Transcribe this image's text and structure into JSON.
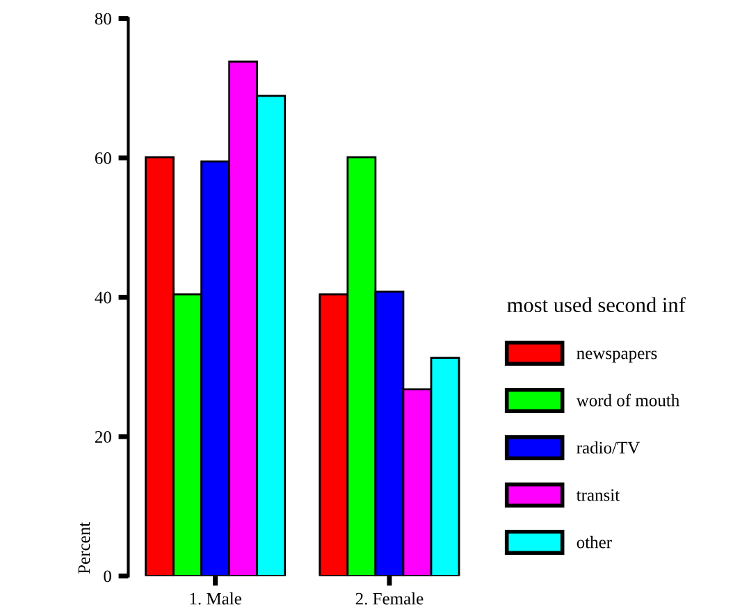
{
  "chart_data": {
    "type": "bar",
    "ylabel": "Percent",
    "legend_title": "most used second inf",
    "categories": [
      "1. Male",
      "2. Female"
    ],
    "series": [
      {
        "name": "newspapers",
        "color": "#ff0000",
        "values": [
          60.1,
          40.4
        ]
      },
      {
        "name": "word of mouth",
        "color": "#00ff00",
        "values": [
          40.4,
          60.1
        ]
      },
      {
        "name": "radio/TV",
        "color": "#0000ff",
        "values": [
          59.5,
          40.8
        ]
      },
      {
        "name": "transit",
        "color": "#ff00ff",
        "values": [
          73.8,
          26.8
        ]
      },
      {
        "name": "other",
        "color": "#00ffff",
        "values": [
          68.9,
          31.3
        ]
      }
    ],
    "ylim": [
      0,
      80
    ],
    "yticks": [
      0,
      20,
      40,
      60,
      80
    ],
    "grid": false,
    "legend": "right"
  }
}
